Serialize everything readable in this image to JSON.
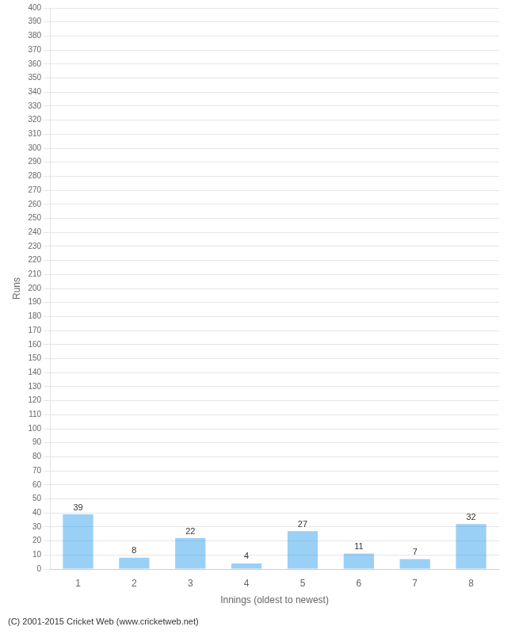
{
  "chart_data": {
    "type": "bar",
    "categories": [
      "1",
      "2",
      "3",
      "4",
      "5",
      "6",
      "7",
      "8"
    ],
    "values": [
      39,
      8,
      22,
      4,
      27,
      11,
      7,
      32
    ],
    "xlabel": "Innings (oldest to newest)",
    "ylabel": "Runs",
    "annotations": [
      "(C) 2001-2015 Cricket Web (www.cricketweb.net)"
    ],
    "ylim": [
      0,
      400
    ],
    "yticks": [
      0,
      10,
      20,
      30,
      40,
      50,
      60,
      70,
      80,
      90,
      100,
      110,
      120,
      130,
      140,
      150,
      160,
      170,
      180,
      190,
      200,
      210,
      220,
      230,
      240,
      250,
      260,
      270,
      280,
      290,
      300,
      310,
      320,
      330,
      340,
      350,
      360,
      370,
      380,
      390,
      400
    ],
    "grid": true,
    "data_labels": true
  }
}
